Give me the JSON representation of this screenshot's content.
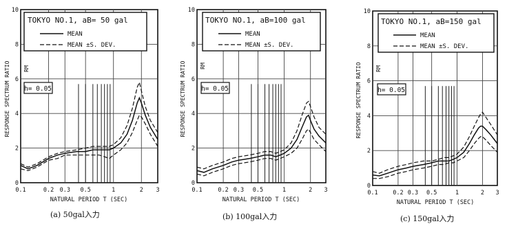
{
  "chart_data": [
    {
      "type": "line",
      "legend_title": "TOKYO NO.1, aB= 50 gal",
      "damping_label": "h= 0.05",
      "xlabel": "NATURAL PERIOD T (SEC)",
      "ylabel": "RESPONSE SPECTRUM RATIO",
      "ylabel_short": "RM",
      "x_scale": "log",
      "xlim": [
        0.1,
        3
      ],
      "ylim": [
        0,
        10
      ],
      "x_ticks": [
        "0.1",
        "0.2",
        "0.3",
        "0.5",
        "1",
        "2",
        "3"
      ],
      "y_ticks": [
        "0",
        "2",
        "4",
        "6",
        "8",
        "10"
      ],
      "grid": true,
      "caption": "(a)  50gal入力",
      "vertical_marks": [
        0.42,
        0.5,
        0.6,
        0.67,
        0.74,
        0.8,
        0.86,
        0.92
      ],
      "series": [
        {
          "name": "MEAN",
          "style": "solid",
          "x": [
            0.1,
            0.12,
            0.15,
            0.2,
            0.25,
            0.3,
            0.4,
            0.5,
            0.6,
            0.7,
            0.8,
            0.9,
            1.0,
            1.2,
            1.4,
            1.6,
            1.8,
            1.9,
            2.0,
            2.2,
            2.5,
            3.0
          ],
          "y": [
            1.0,
            0.8,
            1.0,
            1.4,
            1.6,
            1.7,
            1.8,
            1.8,
            1.9,
            1.9,
            1.9,
            1.9,
            2.0,
            2.3,
            2.8,
            3.6,
            4.6,
            4.9,
            4.6,
            3.9,
            3.2,
            2.5
          ]
        },
        {
          "name": "MEAN ±S. DEV.",
          "style": "dashed",
          "x": [
            0.1,
            0.12,
            0.15,
            0.2,
            0.25,
            0.3,
            0.4,
            0.5,
            0.6,
            0.7,
            0.8,
            0.9,
            1.0,
            1.2,
            1.4,
            1.6,
            1.8,
            1.9,
            2.0,
            2.2,
            2.5,
            3.0
          ],
          "y": [
            1.1,
            0.9,
            1.1,
            1.5,
            1.7,
            1.8,
            1.9,
            2.0,
            2.1,
            2.1,
            2.1,
            2.1,
            2.2,
            2.6,
            3.3,
            4.3,
            5.5,
            5.8,
            5.3,
            4.4,
            3.6,
            2.9
          ]
        },
        {
          "name": "",
          "style": "dashed",
          "x": [
            0.1,
            0.12,
            0.15,
            0.2,
            0.25,
            0.3,
            0.4,
            0.5,
            0.6,
            0.7,
            0.8,
            0.9,
            1.0,
            1.2,
            1.4,
            1.6,
            1.8,
            1.9,
            2.0,
            2.2,
            2.5,
            3.0
          ],
          "y": [
            0.8,
            0.7,
            0.9,
            1.3,
            1.4,
            1.6,
            1.6,
            1.6,
            1.6,
            1.6,
            1.5,
            1.4,
            1.6,
            1.9,
            2.3,
            2.9,
            3.6,
            3.9,
            3.8,
            3.4,
            2.8,
            2.1
          ]
        }
      ]
    },
    {
      "type": "line",
      "legend_title": "TOKYO NO.1, aB=100 gal",
      "damping_label": "h= 0.05",
      "xlabel": "NATURAL PERIOD T (SEC)",
      "ylabel": "RESPONSE SPECTRUM RATIO",
      "ylabel_short": "RM",
      "x_scale": "log",
      "xlim": [
        0.1,
        3
      ],
      "ylim": [
        0,
        10
      ],
      "x_ticks": [
        "0.1",
        "0.2",
        "0.3",
        "0.5",
        "1",
        "2",
        "3"
      ],
      "y_ticks": [
        "0",
        "2",
        "4",
        "6",
        "8",
        "10"
      ],
      "grid": true,
      "caption": "(b)  100gal入力",
      "vertical_marks": [
        0.42,
        0.5,
        0.6,
        0.67,
        0.74,
        0.8,
        0.86,
        0.92
      ],
      "series": [
        {
          "name": "MEAN",
          "style": "solid",
          "x": [
            0.1,
            0.12,
            0.15,
            0.2,
            0.25,
            0.3,
            0.4,
            0.5,
            0.6,
            0.7,
            0.8,
            0.9,
            1.0,
            1.2,
            1.4,
            1.6,
            1.8,
            1.9,
            2.0,
            2.2,
            2.5,
            3.0
          ],
          "y": [
            0.7,
            0.6,
            0.8,
            1.0,
            1.2,
            1.3,
            1.4,
            1.5,
            1.6,
            1.6,
            1.5,
            1.6,
            1.7,
            2.0,
            2.5,
            3.2,
            3.8,
            3.9,
            3.6,
            3.1,
            2.7,
            2.3
          ]
        },
        {
          "name": "MEAN ±S. DEV.",
          "style": "dashed",
          "x": [
            0.1,
            0.12,
            0.15,
            0.2,
            0.25,
            0.3,
            0.4,
            0.5,
            0.6,
            0.7,
            0.8,
            0.9,
            1.0,
            1.2,
            1.4,
            1.6,
            1.8,
            1.9,
            2.0,
            2.2,
            2.5,
            3.0
          ],
          "y": [
            0.9,
            0.8,
            1.0,
            1.2,
            1.4,
            1.5,
            1.6,
            1.7,
            1.8,
            1.8,
            1.7,
            1.8,
            1.9,
            2.3,
            3.0,
            3.9,
            4.6,
            4.7,
            4.4,
            3.8,
            3.2,
            2.8
          ]
        },
        {
          "name": "",
          "style": "dashed",
          "x": [
            0.1,
            0.12,
            0.15,
            0.2,
            0.25,
            0.3,
            0.4,
            0.5,
            0.6,
            0.7,
            0.8,
            0.9,
            1.0,
            1.2,
            1.4,
            1.6,
            1.8,
            1.9,
            2.0,
            2.2,
            2.5,
            3.0
          ],
          "y": [
            0.5,
            0.4,
            0.6,
            0.8,
            1.0,
            1.1,
            1.2,
            1.3,
            1.4,
            1.4,
            1.3,
            1.4,
            1.5,
            1.7,
            2.0,
            2.5,
            3.0,
            3.1,
            2.9,
            2.5,
            2.2,
            1.8
          ]
        }
      ]
    },
    {
      "type": "line",
      "legend_title": "TOKYO NO.1, aB=150 gal",
      "damping_label": "h= 0.05",
      "xlabel": "NATURAL PERIOD T (SEC)",
      "ylabel": "RESPONSE SPECTRUM RATIO",
      "ylabel_short": "RM",
      "x_scale": "log",
      "xlim": [
        0.1,
        3
      ],
      "ylim": [
        0,
        10
      ],
      "x_ticks": [
        "0.1",
        "0.2",
        "0.3",
        "0.5",
        "1",
        "2",
        "3"
      ],
      "y_ticks": [
        "0",
        "2",
        "4",
        "6",
        "8",
        "10"
      ],
      "grid": true,
      "caption": "(c)  150gal入力",
      "vertical_marks": [
        0.42,
        0.5,
        0.6,
        0.67,
        0.74,
        0.8,
        0.86,
        0.92
      ],
      "series": [
        {
          "name": "MEAN",
          "style": "solid",
          "x": [
            0.1,
            0.12,
            0.15,
            0.2,
            0.25,
            0.3,
            0.4,
            0.5,
            0.6,
            0.7,
            0.8,
            0.9,
            1.0,
            1.2,
            1.4,
            1.6,
            1.8,
            1.9,
            2.0,
            2.2,
            2.5,
            3.0
          ],
          "y": [
            0.6,
            0.55,
            0.7,
            0.9,
            1.0,
            1.1,
            1.2,
            1.3,
            1.4,
            1.4,
            1.4,
            1.5,
            1.6,
            1.9,
            2.4,
            2.9,
            3.3,
            3.4,
            3.4,
            3.2,
            2.9,
            2.4
          ]
        },
        {
          "name": "MEAN ±S. DEV.",
          "style": "dashed",
          "x": [
            0.1,
            0.12,
            0.15,
            0.2,
            0.25,
            0.3,
            0.4,
            0.5,
            0.6,
            0.7,
            0.8,
            0.9,
            1.0,
            1.2,
            1.4,
            1.6,
            1.8,
            1.9,
            2.0,
            2.2,
            2.5,
            3.0
          ],
          "y": [
            0.8,
            0.7,
            0.9,
            1.1,
            1.2,
            1.3,
            1.4,
            1.4,
            1.5,
            1.6,
            1.6,
            1.7,
            1.8,
            2.2,
            2.8,
            3.4,
            3.9,
            4.1,
            4.2,
            3.9,
            3.5,
            2.9
          ]
        },
        {
          "name": "",
          "style": "dashed",
          "x": [
            0.1,
            0.12,
            0.15,
            0.2,
            0.25,
            0.3,
            0.4,
            0.5,
            0.6,
            0.7,
            0.8,
            0.9,
            1.0,
            1.2,
            1.4,
            1.6,
            1.8,
            1.9,
            2.0,
            2.2,
            2.5,
            3.0
          ],
          "y": [
            0.4,
            0.4,
            0.5,
            0.7,
            0.8,
            0.9,
            1.0,
            1.1,
            1.2,
            1.2,
            1.3,
            1.3,
            1.4,
            1.6,
            2.0,
            2.4,
            2.7,
            2.8,
            2.8,
            2.6,
            2.3,
            1.9
          ]
        }
      ]
    }
  ]
}
